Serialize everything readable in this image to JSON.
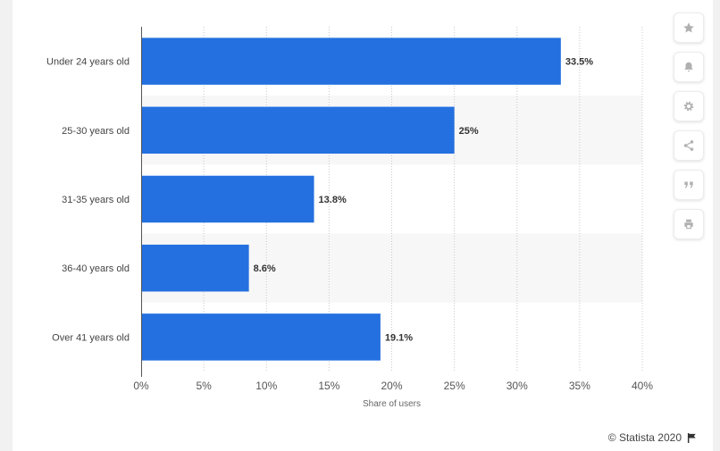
{
  "chart_data": {
    "type": "bar",
    "orientation": "horizontal",
    "categories": [
      "Under 24 years old",
      "25-30 years old",
      "31-35 years old",
      "36-40 years old",
      "Over 41 years old"
    ],
    "values": [
      33.5,
      25,
      13.8,
      8.6,
      19.1
    ],
    "value_labels": [
      "33.5%",
      "25%",
      "13.8%",
      "8.6%",
      "19.1%"
    ],
    "xlabel": "Share of users",
    "xlim": [
      0,
      40
    ],
    "x_ticks": [
      0,
      5,
      10,
      15,
      20,
      25,
      30,
      35,
      40
    ],
    "x_tick_labels": [
      "0%",
      "5%",
      "10%",
      "15%",
      "20%",
      "25%",
      "30%",
      "35%",
      "40%"
    ],
    "grid": true,
    "bar_color": "#2470e0"
  },
  "toolbar": {
    "items": [
      {
        "name": "favorite",
        "icon": "star-icon"
      },
      {
        "name": "notification",
        "icon": "bell-icon"
      },
      {
        "name": "settings",
        "icon": "gear-icon"
      },
      {
        "name": "share",
        "icon": "share-icon"
      },
      {
        "name": "cite",
        "icon": "quote-icon"
      },
      {
        "name": "print",
        "icon": "print-icon"
      }
    ]
  },
  "credit": {
    "text": "© Statista 2020",
    "icon": "flag-icon"
  }
}
